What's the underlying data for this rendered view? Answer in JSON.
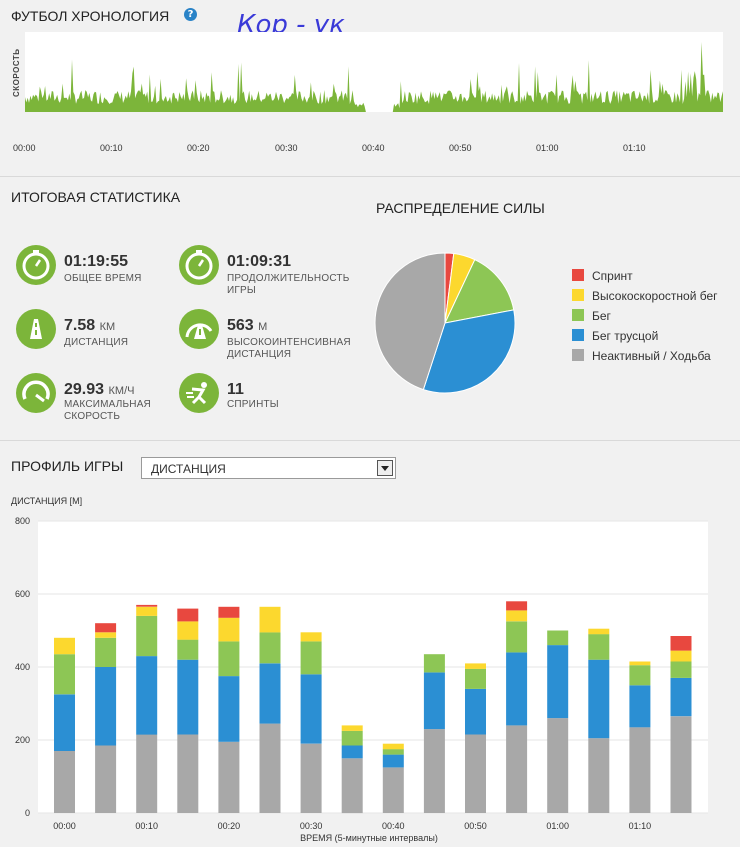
{
  "timeline": {
    "title": "ФУТБОЛ ХРОНОЛОГИЯ",
    "help": "?",
    "signature": "Кор - ук",
    "ylabel": "СКОРОСТЬ",
    "ticks": [
      "00:00",
      "00:10",
      "00:20",
      "00:30",
      "00:40",
      "00:50",
      "01:00",
      "01:10"
    ],
    "color": "#7cb53a"
  },
  "summary": {
    "title": "ИТОГОВАЯ СТАТИСТИКА",
    "stats": [
      {
        "icon": "stopwatch-icon",
        "value": "01:19:55",
        "unit": "",
        "label1": "ОБЩЕЕ ВРЕМЯ",
        "label2": ""
      },
      {
        "icon": "stopwatch-icon",
        "value": "01:09:31",
        "unit": "",
        "label1": "ПРОДОЛЖИТЕЛЬНОСТЬ",
        "label2": "ИГРЫ"
      },
      {
        "icon": "road-icon",
        "value": "7.58",
        "unit": "КМ",
        "label1": "ДИСТАНЦИЯ",
        "label2": ""
      },
      {
        "icon": "intensity-road-icon",
        "value": "563",
        "unit": "М",
        "label1": "ВЫСОКОИНТЕНСИВНАЯ",
        "label2": "ДИСТАНЦИЯ"
      },
      {
        "icon": "speedometer-icon",
        "value": "29.93",
        "unit": "КМ/Ч",
        "label1": "МАКСИМАЛЬНАЯ",
        "label2": "СКОРОСТЬ"
      },
      {
        "icon": "sprint-icon",
        "value": "11",
        "unit": "",
        "label1": "СПРИНТЫ",
        "label2": ""
      }
    ]
  },
  "power": {
    "title": "РАСПРЕДЕЛЕНИЕ СИЛЫ",
    "legend": [
      {
        "label": "Спринт",
        "color": "#e8483f"
      },
      {
        "label": "Высокоскоростной бег",
        "color": "#fcd82e"
      },
      {
        "label": "Бег",
        "color": "#8dc655"
      },
      {
        "label": "Бег трусцой",
        "color": "#2b8fd3"
      },
      {
        "label": "Неактивный / Ходьба",
        "color": "#a8a8a8"
      }
    ]
  },
  "profile": {
    "title": "ПРОФИЛЬ ИГРЫ",
    "select_value": "ДИСТАНЦИЯ",
    "ylabel": "ДИСТАНЦИЯ [М]",
    "xlabel": "ВРЕМЯ (5-минутные интервалы)"
  },
  "chart_data": [
    {
      "type": "pie",
      "title": "РАСПРЕДЕЛЕНИЕ СИЛЫ",
      "labels": [
        "Спринт",
        "Высокоскоростной бег",
        "Бег",
        "Бег трусцой",
        "Неактивный / Ходьба"
      ],
      "values": [
        2,
        5,
        15,
        33,
        45
      ],
      "colors": [
        "#e8483f",
        "#fcd82e",
        "#8dc655",
        "#2b8fd3",
        "#a8a8a8"
      ]
    },
    {
      "type": "bar",
      "stacked": true,
      "ylabel": "ДИСТАНЦИЯ [М]",
      "xlabel": "ВРЕМЯ (5-минутные интервалы)",
      "ylim": [
        0,
        800
      ],
      "yticks": [
        0,
        200,
        400,
        600,
        800
      ],
      "xticks": [
        "00:00",
        "00:10",
        "00:20",
        "00:30",
        "00:40",
        "00:50",
        "01:00",
        "01:10"
      ],
      "grid": true,
      "series": [
        {
          "name": "Неактивный / Ходьба",
          "color": "#a8a8a8",
          "values": [
            170,
            185,
            215,
            215,
            195,
            245,
            190,
            150,
            125,
            230,
            215,
            240,
            260,
            205,
            235,
            265
          ]
        },
        {
          "name": "Бег трусцой",
          "color": "#2b8fd3",
          "values": [
            155,
            215,
            215,
            205,
            180,
            165,
            190,
            35,
            35,
            155,
            125,
            200,
            200,
            215,
            115,
            105
          ]
        },
        {
          "name": "Бег",
          "color": "#8dc655",
          "values": [
            110,
            80,
            110,
            55,
            95,
            85,
            90,
            40,
            15,
            50,
            55,
            85,
            40,
            70,
            55,
            45
          ]
        },
        {
          "name": "Высокоскоростной бег",
          "color": "#fcd82e",
          "values": [
            45,
            15,
            25,
            50,
            65,
            70,
            25,
            15,
            15,
            0,
            15,
            30,
            0,
            15,
            10,
            30
          ]
        },
        {
          "name": "Спринт",
          "color": "#e8483f",
          "values": [
            0,
            25,
            5,
            35,
            30,
            0,
            0,
            0,
            0,
            0,
            0,
            25,
            0,
            0,
            0,
            40
          ]
        }
      ]
    }
  ]
}
